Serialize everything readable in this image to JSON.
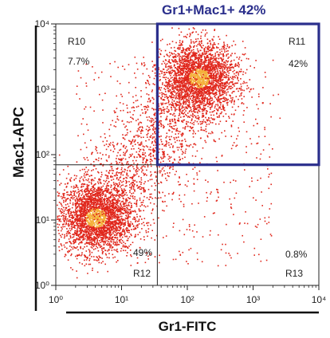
{
  "chart_data": {
    "type": "scatter",
    "title": "",
    "xlabel": "Gr1-FITC",
    "ylabel": "Mac1-APC",
    "xscale": "log",
    "yscale": "log",
    "xlim": [
      1,
      10000
    ],
    "ylim": [
      1,
      10000
    ],
    "x_tick_labels": [
      "10⁰",
      "10¹",
      "10²",
      "10³",
      "10⁴"
    ],
    "y_tick_labels": [
      "10⁰",
      "10¹",
      "10²",
      "10³",
      "10⁴"
    ],
    "grid": false,
    "quadrant_divider": {
      "x": 35,
      "y": 70
    },
    "gate": {
      "label": "Gr1+Mac1+ 42%",
      "x_range": [
        35,
        10000
      ],
      "y_range": [
        70,
        10000
      ],
      "color": "#2b2f8c"
    },
    "regions": [
      {
        "name": "R10",
        "percent": "7.7%"
      },
      {
        "name": "R11",
        "percent": "42%"
      },
      {
        "name": "R12",
        "percent": "49%"
      },
      {
        "name": "R13",
        "percent": "0.8%"
      }
    ],
    "populations": [
      {
        "center_x": 4,
        "center_y": 11,
        "spread": "dense"
      },
      {
        "center_x": 150,
        "center_y": 1500,
        "spread": "dense"
      }
    ],
    "point_color": "#e0261b",
    "density_color": "#f4b03a"
  }
}
